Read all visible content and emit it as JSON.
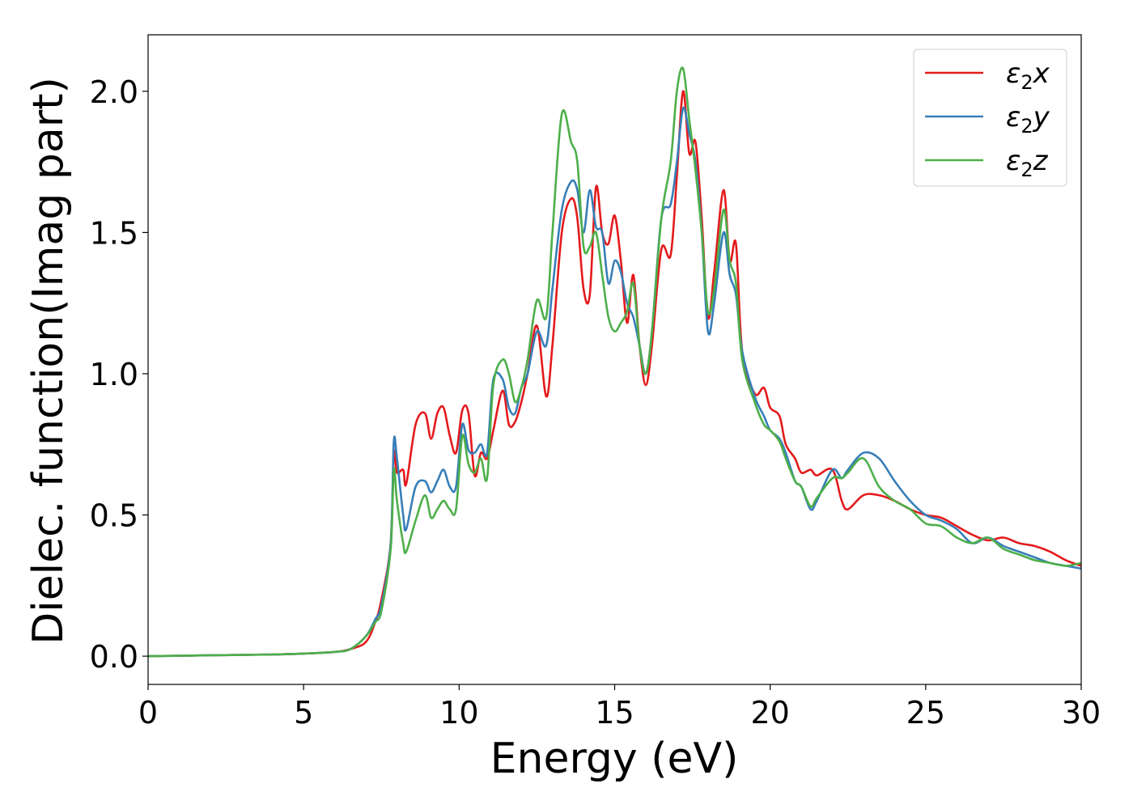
{
  "chart_data": {
    "type": "line",
    "title": "",
    "xlabel": "Energy (eV)",
    "ylabel": "Dielec. function(Imag part)",
    "xlim": [
      0,
      30
    ],
    "ylim": [
      -0.1,
      2.2
    ],
    "xticks": [
      0,
      5,
      10,
      15,
      20,
      25,
      30
    ],
    "xtick_labels": [
      "0",
      "5",
      "10",
      "15",
      "20",
      "25",
      "30"
    ],
    "yticks": [
      0.0,
      0.5,
      1.0,
      1.5,
      2.0
    ],
    "ytick_labels": [
      "0.0",
      "0.5",
      "1.0",
      "1.5",
      "2.0"
    ],
    "grid": false,
    "legend_position": "top-right",
    "series": [
      {
        "name": "ε₂x",
        "legend_main": "ε",
        "legend_sub": "2",
        "legend_tail": "x",
        "color": "#e41a1c",
        "x": [
          0,
          2,
          4,
          5,
          6,
          6.5,
          7,
          7.3,
          7.5,
          7.8,
          7.9,
          8,
          8.2,
          8.3,
          8.6,
          8.9,
          9.1,
          9.3,
          9.5,
          9.7,
          9.9,
          10.1,
          10.3,
          10.5,
          10.7,
          10.9,
          11.1,
          11.4,
          11.6,
          11.8,
          12,
          12.2,
          12.5,
          12.8,
          13,
          13.3,
          13.6,
          13.8,
          14,
          14.2,
          14.4,
          14.6,
          14.8,
          15,
          15.2,
          15.4,
          15.6,
          15.8,
          16,
          16.2,
          16.5,
          16.8,
          17,
          17.2,
          17.4,
          17.6,
          17.8,
          18,
          18.2,
          18.5,
          18.7,
          18.9,
          19.1,
          19.5,
          19.8,
          20,
          20.3,
          20.5,
          20.8,
          21,
          21.3,
          21.5,
          22,
          22.3,
          22.5,
          23,
          23.5,
          24,
          24.5,
          25,
          25.5,
          26,
          26.5,
          27,
          27.5,
          28,
          28.5,
          29,
          29.5,
          30
        ],
        "y": [
          0,
          0.003,
          0.006,
          0.009,
          0.015,
          0.025,
          0.05,
          0.12,
          0.2,
          0.4,
          0.72,
          0.65,
          0.66,
          0.61,
          0.82,
          0.86,
          0.77,
          0.86,
          0.88,
          0.78,
          0.72,
          0.87,
          0.86,
          0.64,
          0.72,
          0.7,
          0.8,
          0.94,
          0.82,
          0.83,
          0.9,
          1.0,
          1.17,
          0.92,
          1.1,
          1.5,
          1.62,
          1.55,
          1.3,
          1.28,
          1.66,
          1.5,
          1.46,
          1.56,
          1.4,
          1.18,
          1.35,
          1.1,
          0.96,
          1.1,
          1.44,
          1.42,
          1.7,
          2.0,
          1.78,
          1.82,
          1.55,
          1.2,
          1.36,
          1.65,
          1.4,
          1.46,
          1.08,
          0.93,
          0.95,
          0.88,
          0.85,
          0.75,
          0.7,
          0.65,
          0.66,
          0.64,
          0.66,
          0.55,
          0.52,
          0.57,
          0.57,
          0.55,
          0.52,
          0.5,
          0.49,
          0.46,
          0.43,
          0.41,
          0.42,
          0.4,
          0.39,
          0.37,
          0.34,
          0.32
        ]
      },
      {
        "name": "ε₂y",
        "legend_main": "ε",
        "legend_sub": "2",
        "legend_tail": "y",
        "color": "#377eb8",
        "x": [
          0,
          2,
          4,
          5,
          6,
          6.5,
          7,
          7.3,
          7.5,
          7.8,
          7.9,
          8,
          8.2,
          8.3,
          8.6,
          8.9,
          9.1,
          9.3,
          9.5,
          9.7,
          9.9,
          10.1,
          10.3,
          10.5,
          10.7,
          10.9,
          11.1,
          11.4,
          11.6,
          11.8,
          12,
          12.2,
          12.5,
          12.8,
          13,
          13.3,
          13.6,
          13.8,
          14,
          14.2,
          14.4,
          14.6,
          14.8,
          15,
          15.2,
          15.4,
          15.6,
          15.8,
          16,
          16.2,
          16.5,
          16.8,
          17,
          17.2,
          17.4,
          17.6,
          17.8,
          18,
          18.2,
          18.5,
          18.7,
          18.9,
          19.1,
          19.5,
          19.8,
          20,
          20.3,
          20.5,
          20.8,
          21,
          21.3,
          21.5,
          22,
          22.3,
          22.5,
          23,
          23.5,
          24,
          24.5,
          25,
          25.5,
          26,
          26.5,
          27,
          27.5,
          28,
          28.5,
          29,
          29.5,
          30
        ],
        "y": [
          0,
          0.003,
          0.006,
          0.009,
          0.015,
          0.025,
          0.07,
          0.13,
          0.18,
          0.4,
          0.76,
          0.7,
          0.5,
          0.45,
          0.6,
          0.62,
          0.58,
          0.62,
          0.66,
          0.6,
          0.6,
          0.82,
          0.73,
          0.72,
          0.75,
          0.72,
          0.98,
          0.98,
          0.88,
          0.86,
          0.95,
          1.0,
          1.15,
          1.1,
          1.3,
          1.58,
          1.68,
          1.65,
          1.5,
          1.65,
          1.52,
          1.5,
          1.32,
          1.4,
          1.36,
          1.25,
          1.2,
          1.1,
          1.0,
          1.15,
          1.55,
          1.6,
          1.75,
          1.94,
          1.85,
          1.75,
          1.5,
          1.15,
          1.25,
          1.5,
          1.35,
          1.28,
          1.08,
          0.92,
          0.85,
          0.8,
          0.77,
          0.72,
          0.62,
          0.6,
          0.52,
          0.55,
          0.66,
          0.63,
          0.66,
          0.72,
          0.7,
          0.62,
          0.55,
          0.5,
          0.48,
          0.45,
          0.4,
          0.42,
          0.39,
          0.37,
          0.35,
          0.33,
          0.32,
          0.31
        ]
      },
      {
        "name": "ε₂z",
        "legend_main": "ε",
        "legend_sub": "2",
        "legend_tail": "z",
        "color": "#4daf4a",
        "x": [
          0,
          2,
          4,
          5,
          6,
          6.5,
          7,
          7.3,
          7.5,
          7.8,
          7.9,
          8,
          8.2,
          8.3,
          8.6,
          8.9,
          9.1,
          9.3,
          9.5,
          9.7,
          9.9,
          10.1,
          10.3,
          10.5,
          10.7,
          10.9,
          11.1,
          11.4,
          11.6,
          11.8,
          12,
          12.2,
          12.5,
          12.8,
          13,
          13.3,
          13.6,
          13.8,
          14,
          14.2,
          14.4,
          14.6,
          14.8,
          15,
          15.2,
          15.4,
          15.6,
          15.8,
          16,
          16.2,
          16.5,
          16.8,
          17,
          17.2,
          17.4,
          17.6,
          17.8,
          18,
          18.2,
          18.5,
          18.7,
          18.9,
          19.1,
          19.5,
          19.8,
          20,
          20.3,
          20.5,
          20.8,
          21,
          21.3,
          21.5,
          22,
          22.3,
          22.5,
          23,
          23.5,
          24,
          24.5,
          25,
          25.5,
          26,
          26.5,
          27,
          27.5,
          28,
          28.5,
          29,
          29.5,
          30
        ],
        "y": [
          0,
          0.003,
          0.006,
          0.009,
          0.015,
          0.025,
          0.07,
          0.12,
          0.16,
          0.38,
          0.66,
          0.55,
          0.4,
          0.37,
          0.48,
          0.57,
          0.49,
          0.52,
          0.55,
          0.52,
          0.52,
          0.78,
          0.68,
          0.65,
          0.7,
          0.63,
          0.96,
          1.05,
          1.0,
          0.9,
          0.95,
          1.05,
          1.26,
          1.2,
          1.5,
          1.92,
          1.82,
          1.75,
          1.45,
          1.45,
          1.5,
          1.35,
          1.2,
          1.15,
          1.18,
          1.22,
          1.32,
          1.1,
          1.0,
          1.15,
          1.55,
          1.75,
          2.0,
          2.08,
          1.9,
          1.72,
          1.5,
          1.22,
          1.3,
          1.58,
          1.4,
          1.32,
          1.05,
          0.9,
          0.82,
          0.8,
          0.76,
          0.7,
          0.62,
          0.6,
          0.53,
          0.56,
          0.63,
          0.63,
          0.65,
          0.7,
          0.6,
          0.55,
          0.52,
          0.47,
          0.46,
          0.42,
          0.4,
          0.42,
          0.38,
          0.36,
          0.34,
          0.33,
          0.32,
          0.33
        ]
      }
    ]
  }
}
